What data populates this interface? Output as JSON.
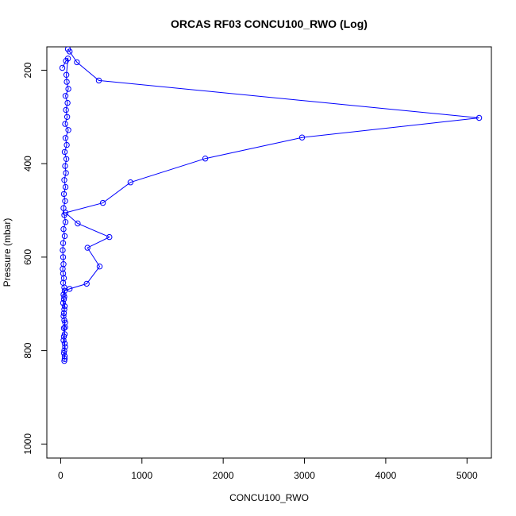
{
  "chart_data": {
    "type": "scatter",
    "title": "ORCAS RF03 CONCU100_RWO (Log)",
    "xlabel": "CONCU100_RWO",
    "ylabel": "Pressure (mbar)",
    "xlim": [
      -170,
      5300
    ],
    "ylim": [
      1030,
      150
    ],
    "y_inverted": true,
    "grid": false,
    "legend": "none",
    "x_ticks": [
      0,
      1000,
      2000,
      3000,
      4000,
      5000
    ],
    "y_ticks": [
      200,
      400,
      600,
      800,
      1000
    ],
    "color": "#0000ff",
    "series": [
      {
        "values": [
          {
            "x": 50,
            "y": 818
          },
          {
            "x": 40,
            "y": 805
          },
          {
            "x": 55,
            "y": 792
          },
          {
            "x": 35,
            "y": 778
          },
          {
            "x": 50,
            "y": 765
          },
          {
            "x": 40,
            "y": 752
          },
          {
            "x": 55,
            "y": 740
          },
          {
            "x": 35,
            "y": 726
          },
          {
            "x": 45,
            "y": 712
          },
          {
            "x": 30,
            "y": 698
          },
          {
            "x": 45,
            "y": 685
          },
          {
            "x": 50,
            "y": 672
          },
          {
            "x": 110,
            "y": 668
          },
          {
            "x": 320,
            "y": 657
          },
          {
            "x": 480,
            "y": 620
          },
          {
            "x": 330,
            "y": 580
          },
          {
            "x": 600,
            "y": 557
          },
          {
            "x": 210,
            "y": 528
          },
          {
            "x": 60,
            "y": 505
          },
          {
            "x": 520,
            "y": 484
          },
          {
            "x": 860,
            "y": 440
          },
          {
            "x": 1780,
            "y": 389
          },
          {
            "x": 2970,
            "y": 344
          },
          {
            "x": 5150,
            "y": 302
          },
          {
            "x": 470,
            "y": 222
          },
          {
            "x": 200,
            "y": 183
          },
          {
            "x": 110,
            "y": 160
          },
          {
            "x": 90,
            "y": 155
          }
        ]
      },
      {
        "values": [
          {
            "x": 20,
            "y": 195
          },
          {
            "x": 65,
            "y": 180
          },
          {
            "x": 90,
            "y": 175
          },
          {
            "x": 70,
            "y": 210
          },
          {
            "x": 75,
            "y": 225
          },
          {
            "x": 95,
            "y": 240
          },
          {
            "x": 60,
            "y": 255
          },
          {
            "x": 85,
            "y": 270
          },
          {
            "x": 65,
            "y": 285
          },
          {
            "x": 80,
            "y": 300
          },
          {
            "x": 55,
            "y": 315
          },
          {
            "x": 95,
            "y": 328
          },
          {
            "x": 60,
            "y": 345
          },
          {
            "x": 75,
            "y": 360
          },
          {
            "x": 50,
            "y": 375
          },
          {
            "x": 70,
            "y": 390
          },
          {
            "x": 55,
            "y": 405
          },
          {
            "x": 65,
            "y": 420
          },
          {
            "x": 45,
            "y": 435
          },
          {
            "x": 60,
            "y": 450
          },
          {
            "x": 40,
            "y": 465
          },
          {
            "x": 55,
            "y": 480
          },
          {
            "x": 35,
            "y": 495
          },
          {
            "x": 45,
            "y": 510
          },
          {
            "x": 60,
            "y": 525
          },
          {
            "x": 35,
            "y": 540
          },
          {
            "x": 50,
            "y": 555
          },
          {
            "x": 30,
            "y": 570
          },
          {
            "x": 25,
            "y": 585
          },
          {
            "x": 30,
            "y": 600
          },
          {
            "x": 35,
            "y": 615
          },
          {
            "x": 25,
            "y": 625
          },
          {
            "x": 30,
            "y": 635
          },
          {
            "x": 40,
            "y": 645
          },
          {
            "x": 30,
            "y": 655
          },
          {
            "x": 45,
            "y": 665
          },
          {
            "x": 35,
            "y": 680
          },
          {
            "x": 40,
            "y": 690
          },
          {
            "x": 50,
            "y": 705
          },
          {
            "x": 40,
            "y": 720
          },
          {
            "x": 45,
            "y": 735
          },
          {
            "x": 55,
            "y": 750
          },
          {
            "x": 40,
            "y": 770
          },
          {
            "x": 50,
            "y": 785
          },
          {
            "x": 45,
            "y": 800
          },
          {
            "x": 50,
            "y": 812
          },
          {
            "x": 45,
            "y": 822
          }
        ]
      }
    ]
  }
}
